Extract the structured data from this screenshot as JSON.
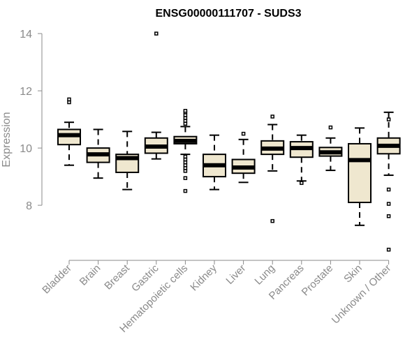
{
  "chart_data": {
    "type": "boxplot",
    "title": "ENSG00000111707 - SUDS3",
    "xlabel": "",
    "ylabel": "Expression",
    "ylim": [
      6.1,
      14.1
    ],
    "yticks": [
      8,
      10,
      12,
      14
    ],
    "categories": [
      "Bladder",
      "Brain",
      "Breast",
      "Gastric",
      "Hematopoietic cells",
      "Kidney",
      "Liver",
      "Lung",
      "Pancreas",
      "Prostate",
      "Skin",
      "Unknown / Other"
    ],
    "boxes": [
      {
        "category": "Bladder",
        "whisker_low": 9.4,
        "q1": 10.12,
        "median": 10.45,
        "q3": 10.65,
        "whisker_high": 10.9,
        "outliers": [
          11.6,
          11.7
        ]
      },
      {
        "category": "Brain",
        "whisker_low": 8.95,
        "q1": 9.5,
        "median": 9.78,
        "q3": 10.0,
        "whisker_high": 10.65,
        "outliers": []
      },
      {
        "category": "Breast",
        "whisker_low": 8.55,
        "q1": 9.15,
        "median": 9.65,
        "q3": 9.78,
        "whisker_high": 10.58,
        "outliers": []
      },
      {
        "category": "Gastric",
        "whisker_low": 9.62,
        "q1": 9.82,
        "median": 10.05,
        "q3": 10.35,
        "whisker_high": 10.55,
        "outliers": [
          14.0
        ]
      },
      {
        "category": "Hematopoietic cells",
        "whisker_low": 9.78,
        "q1": 10.15,
        "median": 10.25,
        "q3": 10.4,
        "whisker_high": 10.75,
        "outliers": [
          8.5,
          8.95,
          9.2,
          9.3,
          9.4,
          9.5,
          9.6,
          9.7,
          10.85,
          10.95,
          11.05,
          11.15,
          11.25,
          11.3
        ]
      },
      {
        "category": "Kidney",
        "whisker_low": 8.55,
        "q1": 9.0,
        "median": 9.4,
        "q3": 9.78,
        "whisker_high": 10.45,
        "outliers": []
      },
      {
        "category": "Liver",
        "whisker_low": 8.8,
        "q1": 9.12,
        "median": 9.32,
        "q3": 9.6,
        "whisker_high": 10.3,
        "outliers": [
          10.5
        ]
      },
      {
        "category": "Lung",
        "whisker_low": 9.2,
        "q1": 9.78,
        "median": 9.98,
        "q3": 10.25,
        "whisker_high": 10.82,
        "outliers": [
          7.45,
          11.1
        ]
      },
      {
        "category": "Pancreas",
        "whisker_low": 8.85,
        "q1": 9.68,
        "median": 10.0,
        "q3": 10.22,
        "whisker_high": 10.45,
        "outliers": [
          8.78
        ]
      },
      {
        "category": "Prostate",
        "whisker_low": 9.22,
        "q1": 9.72,
        "median": 9.85,
        "q3": 10.02,
        "whisker_high": 10.35,
        "outliers": [
          10.72
        ]
      },
      {
        "category": "Skin",
        "whisker_low": 7.3,
        "q1": 8.1,
        "median": 9.58,
        "q3": 10.15,
        "whisker_high": 10.7,
        "outliers": []
      },
      {
        "category": "Unknown / Other",
        "whisker_low": 9.05,
        "q1": 9.8,
        "median": 10.08,
        "q3": 10.35,
        "whisker_high": 11.25,
        "outliers": [
          6.45,
          7.62,
          8.05,
          8.55,
          11.0
        ]
      }
    ],
    "colors": {
      "box_fill": "#efe7cf",
      "axis": "#8a8a8a",
      "ink": "#000000"
    }
  }
}
